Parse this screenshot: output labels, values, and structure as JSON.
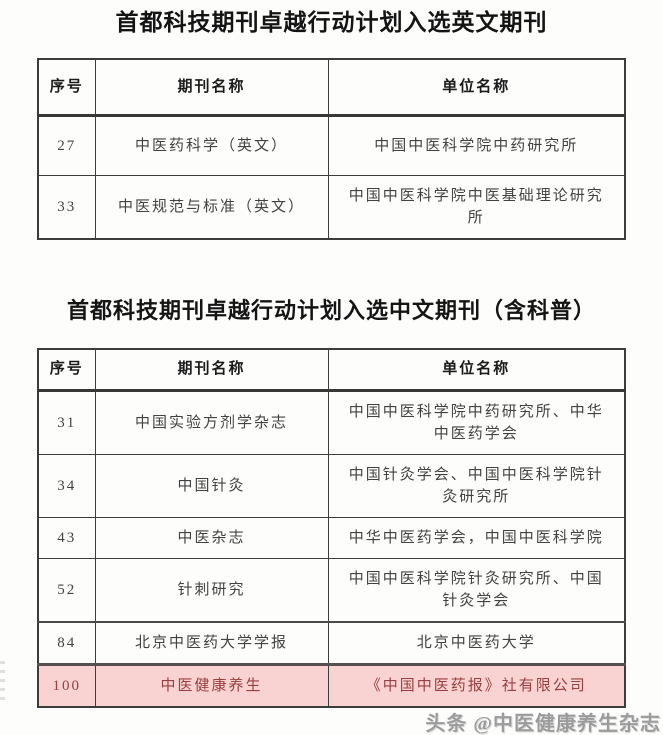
{
  "tables": [
    {
      "title": "首都科技期刊卓越行动计划入选英文期刊",
      "headers": [
        "序号",
        "期刊名称",
        "单位名称"
      ],
      "rows": [
        {
          "no": "27",
          "journal": "中医药科学（英文）",
          "unit": "中国中医科学院中药研究所",
          "highlight": false
        },
        {
          "no": "33",
          "journal": "中医规范与标准（英文）",
          "unit": "中国中医科学院中医基础理论研究所",
          "highlight": false
        }
      ]
    },
    {
      "title": "首都科技期刊卓越行动计划入选中文期刊（含科普）",
      "headers": [
        "序号",
        "期刊名称",
        "单位名称"
      ],
      "rows": [
        {
          "no": "31",
          "journal": "中国实验方剂学杂志",
          "unit": "中国中医科学院中药研究所、中华中医药学会",
          "highlight": false
        },
        {
          "no": "34",
          "journal": "中国针灸",
          "unit": "中国针灸学会、中国中医科学院针灸研究所",
          "highlight": false
        },
        {
          "no": "43",
          "journal": "中医杂志",
          "unit": "中华中医药学会，中国中医科学院",
          "highlight": false
        },
        {
          "no": "52",
          "journal": "针刺研究",
          "unit": "中国中医科学院针灸研究所、中国针灸学会",
          "highlight": false
        },
        {
          "no": "84",
          "journal": "北京中医药大学学报",
          "unit": "北京中医药大学",
          "highlight": false
        },
        {
          "no": "100",
          "journal": "中医健康养生",
          "unit": "《中国中医药报》社有限公司",
          "highlight": true
        }
      ]
    }
  ],
  "watermark": {
    "text": "头条 @中医健康养生杂志"
  },
  "colors": {
    "highlight_bg": "#f9d2d2",
    "highlight_text": "#98403f",
    "cell_text": "#424242",
    "border": "#3c3c3c",
    "watermark": "#9b9b9b"
  }
}
